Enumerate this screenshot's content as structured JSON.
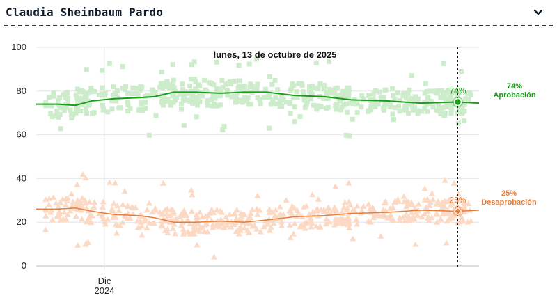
{
  "header": {
    "title": "Claudia Sheinbaum Pardo",
    "toggle_icon": "chevron-down-icon"
  },
  "colors": {
    "approval": "#1a9e1a",
    "approval_light": "#cdeccb",
    "disapproval": "#e67e3a",
    "disapproval_light": "#fcd9c4",
    "grid": "#e6e6e6"
  },
  "chart_data": {
    "type": "line",
    "title": "",
    "hover_date": "lunes, 13 de octubre de 2025",
    "ylim": [
      0,
      100
    ],
    "y_ticks": [
      0,
      20,
      40,
      60,
      80,
      100
    ],
    "xlim": [
      "2024-10-01",
      "2025-11-01"
    ],
    "x_ticks": [
      {
        "date": "2024-12-01",
        "label": "Dic",
        "sublabel": "2024"
      }
    ],
    "grid": true,
    "series": [
      {
        "name": "Aprobación",
        "marker": "square",
        "end_value": "74%",
        "end_label": "Aprobación",
        "points": [
          [
            "2024-10-01",
            74
          ],
          [
            "2024-10-20",
            74
          ],
          [
            "2024-11-05",
            73.5
          ],
          [
            "2024-11-20",
            75.5
          ],
          [
            "2024-12-10",
            76.5
          ],
          [
            "2025-01-01",
            77
          ],
          [
            "2025-01-15",
            77.5
          ],
          [
            "2025-02-01",
            79.5
          ],
          [
            "2025-02-20",
            79.5
          ],
          [
            "2025-03-15",
            79
          ],
          [
            "2025-04-05",
            79.5
          ],
          [
            "2025-04-25",
            79.5
          ],
          [
            "2025-05-20",
            78
          ],
          [
            "2025-06-15",
            77.5
          ],
          [
            "2025-07-10",
            76
          ],
          [
            "2025-08-10",
            75.5
          ],
          [
            "2025-09-10",
            74.5
          ],
          [
            "2025-10-13",
            75
          ],
          [
            "2025-11-01",
            74.5
          ]
        ]
      },
      {
        "name": "Desaprobación",
        "marker": "triangle",
        "end_value": "25%",
        "end_label": "Desaprobación",
        "points": [
          [
            "2024-10-01",
            26
          ],
          [
            "2024-10-20",
            26
          ],
          [
            "2024-11-05",
            26.5
          ],
          [
            "2024-11-20",
            25
          ],
          [
            "2024-12-10",
            23.5
          ],
          [
            "2025-01-01",
            23
          ],
          [
            "2025-01-15",
            22
          ],
          [
            "2025-02-01",
            20
          ],
          [
            "2025-02-20",
            20
          ],
          [
            "2025-03-15",
            20.5
          ],
          [
            "2025-04-05",
            20
          ],
          [
            "2025-04-25",
            21
          ],
          [
            "2025-05-20",
            22.5
          ],
          [
            "2025-06-15",
            23
          ],
          [
            "2025-07-10",
            24
          ],
          [
            "2025-08-10",
            24.5
          ],
          [
            "2025-09-10",
            25.5
          ],
          [
            "2025-10-13",
            25
          ],
          [
            "2025-11-01",
            25.5
          ]
        ]
      }
    ]
  }
}
